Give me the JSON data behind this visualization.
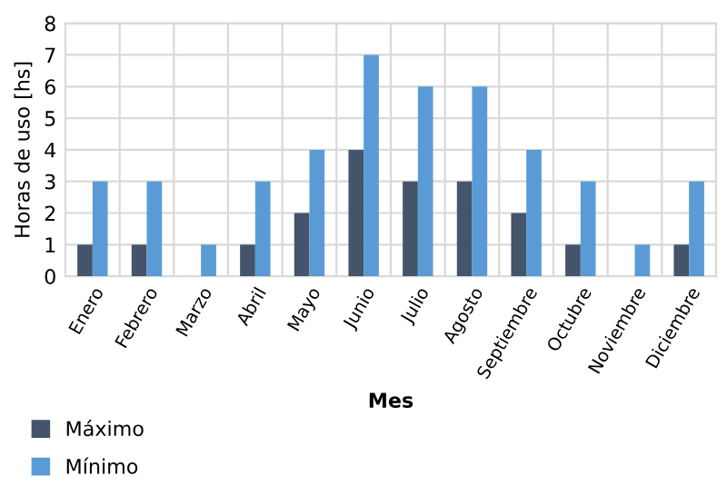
{
  "chart_data": {
    "type": "bar",
    "xlabel": "Mes",
    "ylabel": "Horas de uso [hs]",
    "categories": [
      "Enero",
      "Febrero",
      "Marzo",
      "Abril",
      "Mayo",
      "Junio",
      "Julio",
      "Agosto",
      "Septiembre",
      "Octubre",
      "Noviembre",
      "Diciembre"
    ],
    "series": [
      {
        "name": "Máximo",
        "color": "#44546a",
        "values": [
          1,
          1,
          0,
          1,
          2,
          4,
          3,
          3,
          2,
          1,
          0,
          1
        ]
      },
      {
        "name": "Mínimo",
        "color": "#5b9bd5",
        "values": [
          3,
          3,
          1,
          3,
          4,
          7,
          6,
          6,
          4,
          3,
          1,
          3
        ]
      }
    ],
    "ylim": [
      0,
      8
    ],
    "yticks": [
      0,
      1,
      2,
      3,
      4,
      5,
      6,
      7,
      8
    ],
    "grid": true,
    "legend": "bottom left"
  }
}
